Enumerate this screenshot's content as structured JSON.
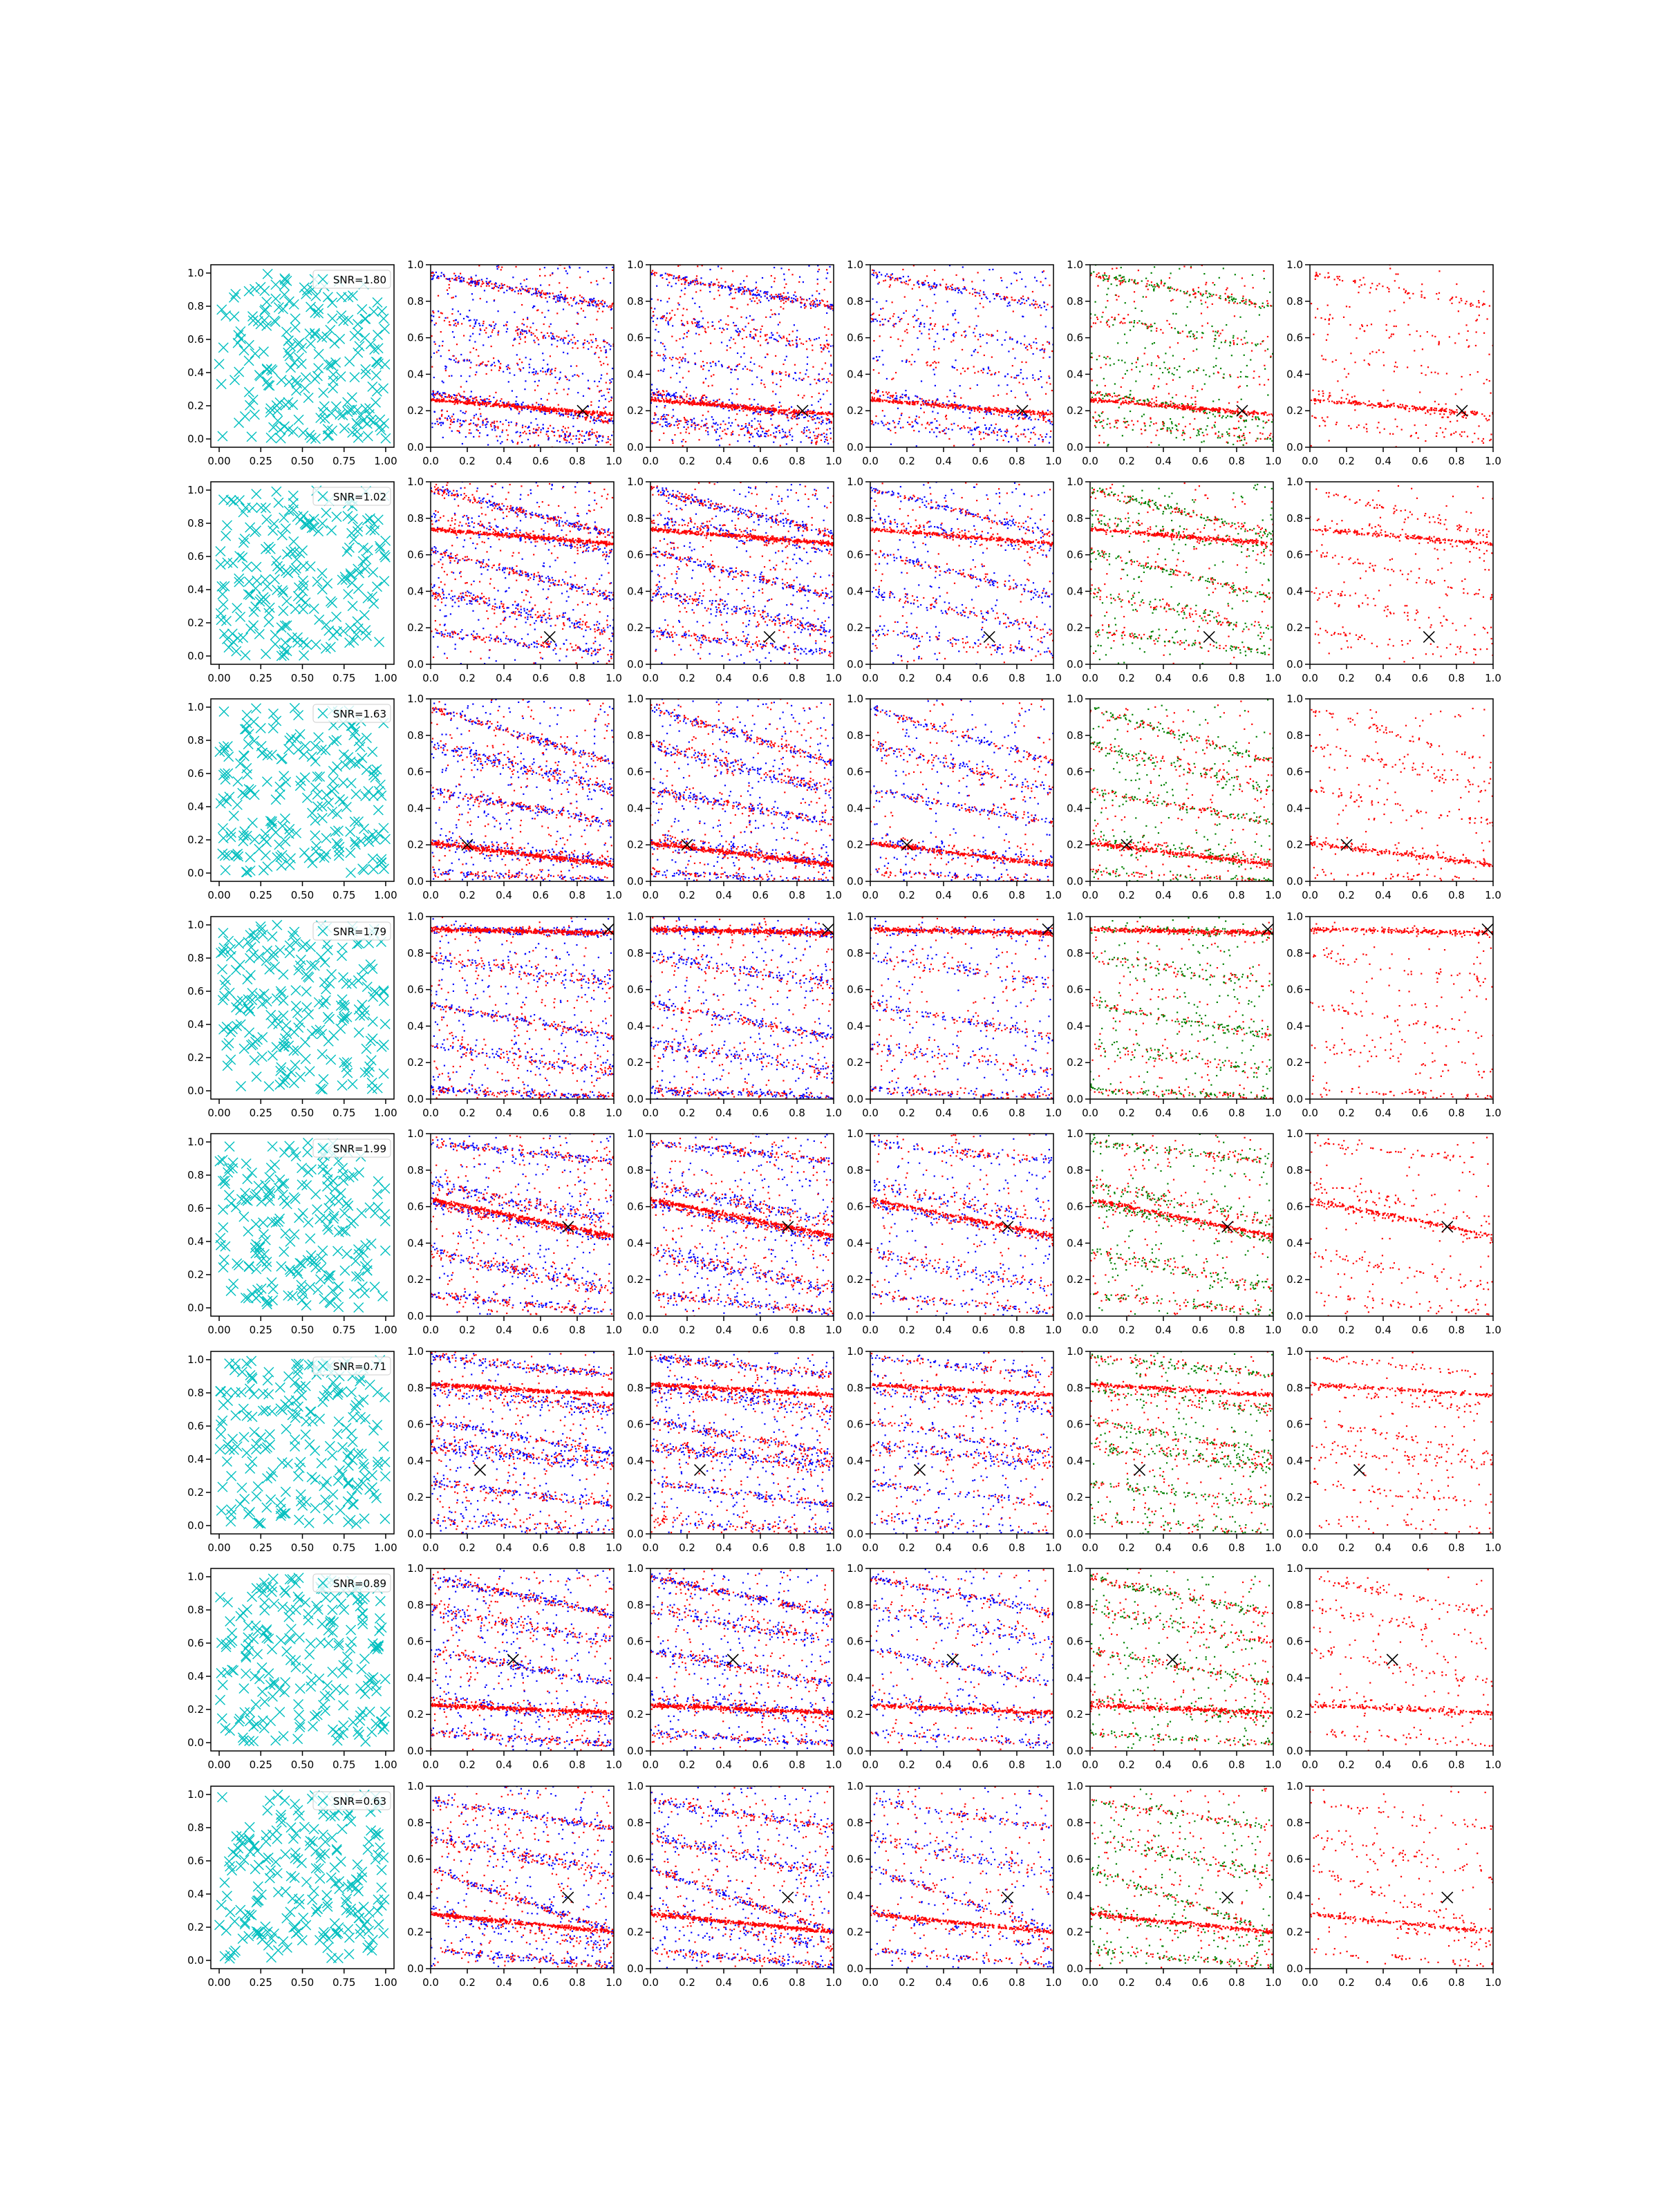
{
  "figure": {
    "rows": 8,
    "columns": 6,
    "colors": {
      "cyan": "#00bfbf",
      "red": "#ff0000",
      "blue": "#0000ff",
      "green": "#008000",
      "marker": "#000000",
      "axes": "#000000"
    }
  },
  "chart_data": {
    "type": "scatter",
    "panel_axes": {
      "left_column": {
        "xlim": [
          -0.05,
          1.05
        ],
        "ylim": [
          -0.05,
          1.05
        ],
        "xticks": [
          "0.00",
          "0.25",
          "0.50",
          "0.75",
          "1.00"
        ],
        "yticks": [
          "0.0",
          "0.2",
          "0.4",
          "0.6",
          "0.8",
          "1.0"
        ]
      },
      "other_columns": {
        "xlim": [
          0,
          1
        ],
        "ylim": [
          0,
          1
        ],
        "xticks": [
          "0.0",
          "0.2",
          "0.4",
          "0.6",
          "0.8",
          "1.0"
        ],
        "yticks": [
          "0.0",
          "0.2",
          "0.4",
          "0.6",
          "0.8",
          "1.0"
        ]
      }
    },
    "column_series": [
      {
        "column": 1,
        "type": "scatter",
        "marker": "x",
        "color": "cyan",
        "points_approx": 220
      },
      {
        "column": 2,
        "type": "scatter",
        "colors": [
          "red",
          "blue"
        ],
        "density": "dense"
      },
      {
        "column": 3,
        "type": "scatter",
        "colors": [
          "red",
          "blue"
        ],
        "density": "dense"
      },
      {
        "column": 4,
        "type": "scatter",
        "colors": [
          "red",
          "blue"
        ],
        "density": "medium"
      },
      {
        "column": 5,
        "type": "scatter",
        "colors": [
          "red",
          "green"
        ],
        "density": "medium"
      },
      {
        "column": 6,
        "type": "scatter",
        "colors": [
          "red"
        ],
        "density": "sparse"
      }
    ],
    "rows": [
      {
        "snr_label": "SNR=1.80",
        "marker": [
          0.83,
          0.2
        ],
        "bands": [
          [
            0.95,
            0.18,
            1.0
          ],
          [
            0.72,
            0.18,
            0.6
          ],
          [
            0.3,
            0.16,
            1.0
          ],
          [
            0.15,
            0.1,
            0.8
          ],
          [
            0.5,
            0.14,
            0.3
          ]
        ],
        "highlight_band": [
          0.26,
          0.08
        ]
      },
      {
        "snr_label": "SNR=1.02",
        "marker": [
          0.65,
          0.15
        ],
        "bands": [
          [
            0.96,
            0.25,
            1.0
          ],
          [
            0.8,
            0.18,
            0.7
          ],
          [
            0.62,
            0.25,
            0.8
          ],
          [
            0.4,
            0.22,
            0.8
          ],
          [
            0.18,
            0.12,
            0.6
          ]
        ],
        "highlight_band": [
          0.74,
          0.08
        ]
      },
      {
        "snr_label": "SNR=1.63",
        "marker": [
          0.2,
          0.2
        ],
        "bands": [
          [
            0.95,
            0.3,
            0.8
          ],
          [
            0.75,
            0.25,
            0.9
          ],
          [
            0.5,
            0.18,
            0.8
          ],
          [
            0.22,
            0.12,
            1.0
          ],
          [
            0.05,
            0.05,
            0.6
          ]
        ],
        "highlight_band": [
          0.21,
          0.12
        ]
      },
      {
        "snr_label": "SNR=1.79",
        "marker": [
          0.97,
          0.93
        ],
        "bands": [
          [
            0.93,
            0.02,
            1.0
          ],
          [
            0.78,
            0.15,
            0.6
          ],
          [
            0.52,
            0.18,
            0.7
          ],
          [
            0.3,
            0.15,
            0.6
          ],
          [
            0.05,
            0.04,
            0.8
          ]
        ],
        "highlight_band": [
          0.93,
          0.02
        ]
      },
      {
        "snr_label": "SNR=1.99",
        "marker": [
          0.75,
          0.49
        ],
        "bands": [
          [
            0.95,
            0.1,
            0.7
          ],
          [
            0.72,
            0.2,
            0.8
          ],
          [
            0.62,
            0.2,
            1.0
          ],
          [
            0.35,
            0.2,
            0.8
          ],
          [
            0.12,
            0.1,
            0.6
          ]
        ],
        "highlight_band": [
          0.64,
          0.2
        ]
      },
      {
        "snr_label": "SNR=0.71",
        "marker": [
          0.27,
          0.35
        ],
        "bands": [
          [
            0.97,
            0.1,
            0.7
          ],
          [
            0.8,
            0.12,
            0.8
          ],
          [
            0.62,
            0.18,
            0.7
          ],
          [
            0.48,
            0.1,
            1.0
          ],
          [
            0.28,
            0.12,
            0.6
          ],
          [
            0.08,
            0.08,
            0.5
          ]
        ],
        "highlight_band": [
          0.82,
          0.06
        ]
      },
      {
        "snr_label": "SNR=0.89",
        "marker": [
          0.45,
          0.5
        ],
        "bands": [
          [
            0.95,
            0.2,
            1.0
          ],
          [
            0.78,
            0.18,
            0.7
          ],
          [
            0.55,
            0.18,
            0.7
          ],
          [
            0.28,
            0.1,
            0.8
          ],
          [
            0.1,
            0.06,
            0.6
          ]
        ],
        "highlight_band": [
          0.25,
          0.04
        ]
      },
      {
        "snr_label": "SNR=0.63",
        "marker": [
          0.75,
          0.39
        ],
        "bands": [
          [
            0.92,
            0.15,
            0.6
          ],
          [
            0.72,
            0.2,
            0.7
          ],
          [
            0.55,
            0.35,
            0.8
          ],
          [
            0.32,
            0.2,
            0.6
          ],
          [
            0.1,
            0.08,
            0.6
          ]
        ],
        "highlight_band": [
          0.3,
          0.1
        ]
      }
    ]
  }
}
